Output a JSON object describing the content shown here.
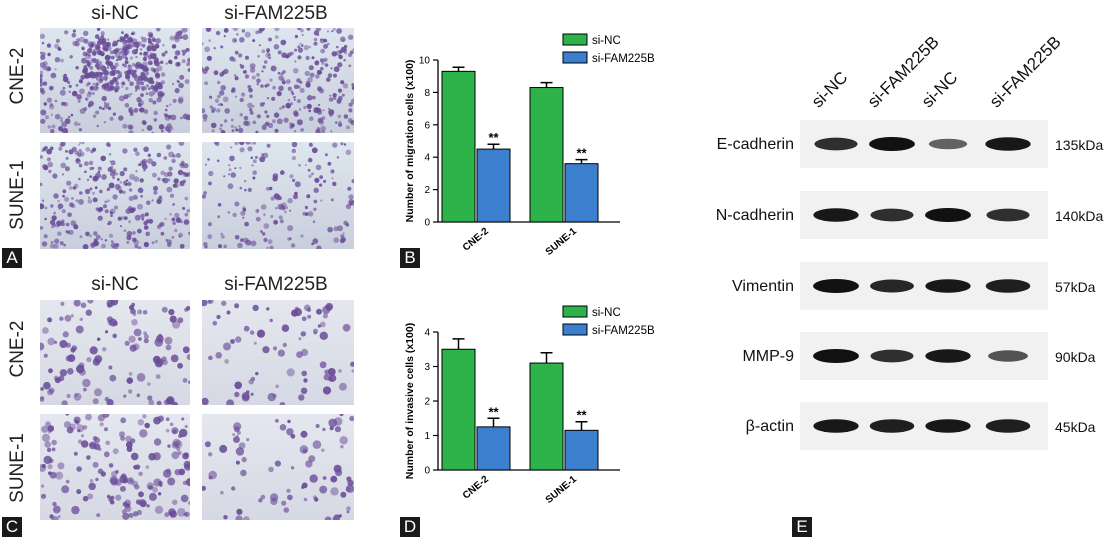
{
  "panelA": {
    "letter": "A",
    "col_labels": [
      "si-NC",
      "si-FAM225B"
    ],
    "row_labels": [
      "CNE-2",
      "SUNE-1"
    ]
  },
  "panelC": {
    "letter": "C",
    "col_labels": [
      "si-NC",
      "si-FAM225B"
    ],
    "row_labels": [
      "CNE-2",
      "SUNE-1"
    ]
  },
  "colors": {
    "si_nc": "#2db34a",
    "si_fam": "#3d7fcf",
    "stain_dark": "#6a4c98",
    "stain_bg_top": "#dde6ee",
    "stain_bg_bottom": "#c9cedc"
  },
  "chart_data": [
    {
      "type": "bar",
      "panel": "B",
      "ylabel": "Number of migration cells (x100)",
      "categories": [
        "CNE-2",
        "SUNE-1"
      ],
      "ylim": [
        0,
        10
      ],
      "yticks": [
        0,
        2,
        4,
        6,
        8,
        10
      ],
      "series": [
        {
          "name": "si-NC",
          "values": [
            9.3,
            8.3
          ],
          "errors": [
            0.25,
            0.3
          ]
        },
        {
          "name": "si-FAM225B",
          "values": [
            4.5,
            3.6
          ],
          "errors": [
            0.3,
            0.25
          ]
        }
      ],
      "annotations": [
        "**",
        "**"
      ],
      "legend": "top-right"
    },
    {
      "type": "bar",
      "panel": "D",
      "ylabel": "Number of invasive cells (x100)",
      "categories": [
        "CNE-2",
        "SUNE-1"
      ],
      "ylim": [
        0,
        4
      ],
      "yticks": [
        0,
        1,
        2,
        3,
        4
      ],
      "series": [
        {
          "name": "si-NC",
          "values": [
            3.5,
            3.1
          ],
          "errors": [
            0.3,
            0.3
          ]
        },
        {
          "name": "si-FAM225B",
          "values": [
            1.25,
            1.15
          ],
          "errors": [
            0.25,
            0.25
          ]
        }
      ],
      "annotations": [
        "**",
        "**"
      ],
      "legend": "top-right"
    }
  ],
  "panelE": {
    "letter": "E",
    "lanes": [
      "si-NC",
      "si-FAM225B",
      "si-NC",
      "si-FAM225B"
    ],
    "proteins": [
      {
        "name": "E-cadherin",
        "kda": "135kDa",
        "intensity": [
          0.8,
          1.0,
          0.45,
          0.95
        ]
      },
      {
        "name": "N-cadherin",
        "kda": "140kDa",
        "intensity": [
          0.95,
          0.8,
          1.0,
          0.8
        ]
      },
      {
        "name": "Vimentin",
        "kda": "57kDa",
        "intensity": [
          1.0,
          0.85,
          0.95,
          0.9
        ]
      },
      {
        "name": "MMP-9",
        "kda": "90kDa",
        "intensity": [
          1.0,
          0.8,
          0.95,
          0.55
        ]
      },
      {
        "name": "β-actin",
        "kda": "45kDa",
        "intensity": [
          0.95,
          0.9,
          0.95,
          0.9
        ]
      }
    ]
  }
}
